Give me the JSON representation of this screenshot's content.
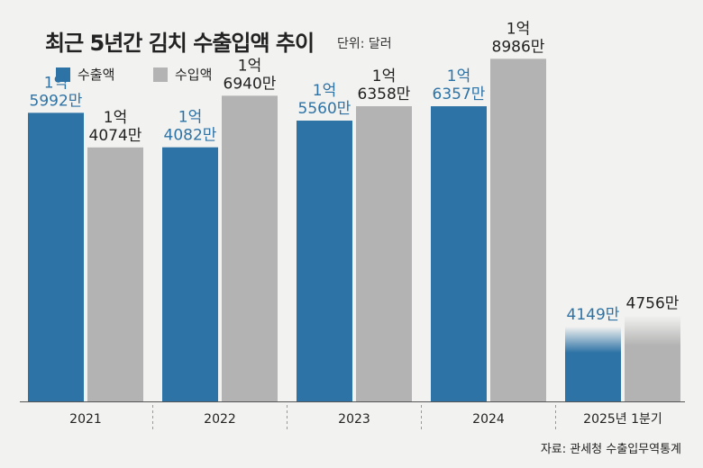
{
  "title": "최근 5년간 김치 수출입액 추이",
  "unit": "단위: 달러",
  "source": "자료: 관세청 수출입무역통계",
  "colors": {
    "export": "#2e73a5",
    "import": "#b3b3b3",
    "export_label": "#2e73a5",
    "import_label": "#222222",
    "background": "#f2f2f0"
  },
  "chart_data": {
    "type": "bar",
    "title": "최근 5년간 김치 수출입액 추이",
    "ylabel": "단위: 달러",
    "ylim": [
      0,
      200000000
    ],
    "categories": [
      "2021",
      "2022",
      "2023",
      "2024",
      "2025년 1분기"
    ],
    "series": [
      {
        "name": "수출액",
        "values": [
          159920000,
          140820000,
          155600000,
          163570000,
          41490000
        ],
        "labels": [
          [
            "1억",
            "5992만"
          ],
          [
            "1억",
            "4082만"
          ],
          [
            "1억",
            "5560만"
          ],
          [
            "1억",
            "6357만"
          ],
          [
            "4149만"
          ]
        ]
      },
      {
        "name": "수입액",
        "values": [
          140740000,
          169400000,
          163580000,
          189860000,
          47560000
        ],
        "labels": [
          [
            "1억",
            "4074만"
          ],
          [
            "1억",
            "6940만"
          ],
          [
            "1억",
            "6358만"
          ],
          [
            "1억",
            "8986만"
          ],
          [
            "4756만"
          ]
        ]
      }
    ]
  }
}
